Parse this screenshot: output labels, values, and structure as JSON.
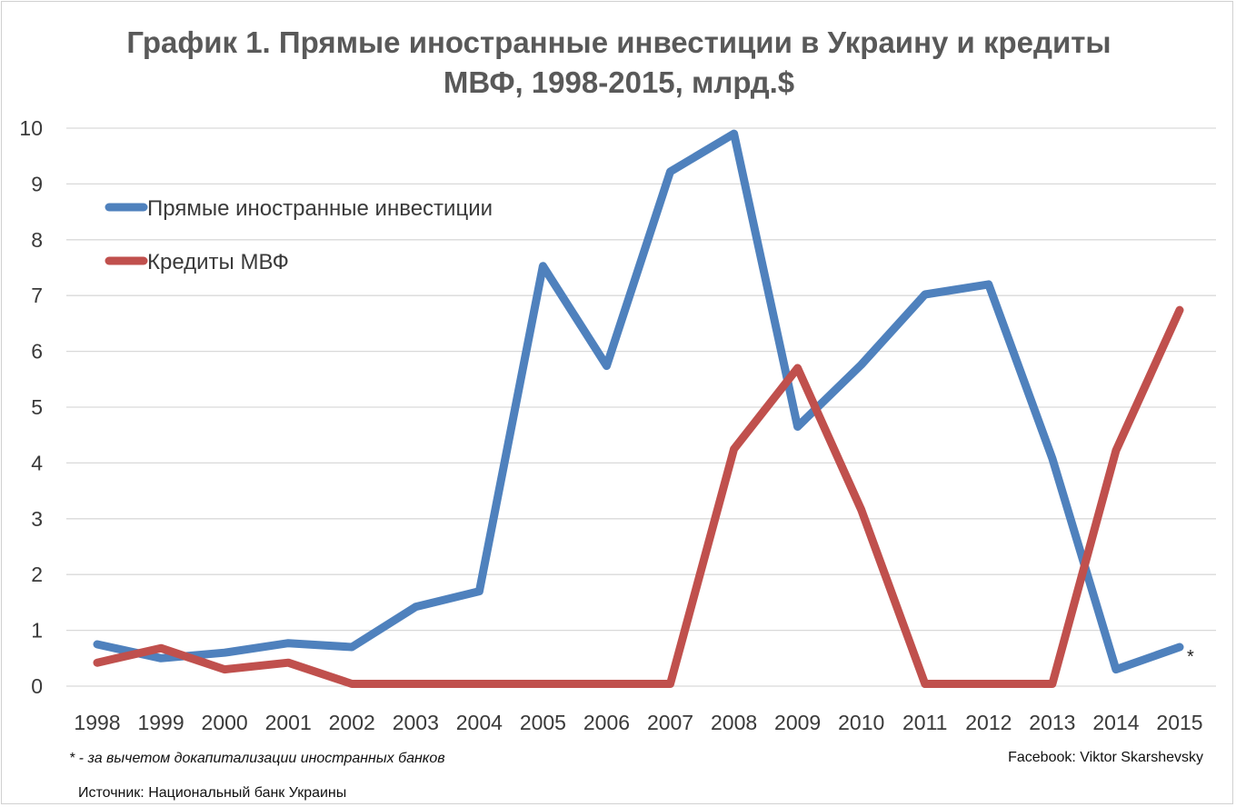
{
  "chart_data": {
    "type": "line",
    "title_lines": [
      "График 1. Прямые иностранные инвестиции в Украину и кредиты",
      "МВФ, 1998-2015, млрд.$"
    ],
    "categories": [
      "1998",
      "1999",
      "2000",
      "2001",
      "2002",
      "2003",
      "2004",
      "2005",
      "2006",
      "2007",
      "2008",
      "2009",
      "2010",
      "2011",
      "2012",
      "2013",
      "2014",
      "2015"
    ],
    "ylim": [
      0,
      10
    ],
    "yticks": [
      "0",
      "1",
      "2",
      "3",
      "4",
      "5",
      "6",
      "7",
      "8",
      "9",
      "10"
    ],
    "grid": true,
    "legend_position": "top-left",
    "series": [
      {
        "name": "Прямые иностранные инвестиции",
        "color": "#4f81bd",
        "values": [
          0.75,
          0.5,
          0.6,
          0.77,
          0.7,
          1.42,
          1.7,
          7.53,
          5.74,
          9.22,
          9.9,
          4.65,
          5.76,
          7.02,
          7.2,
          4.08,
          0.3,
          0.7
        ]
      },
      {
        "name": "Кредиты МВФ",
        "color": "#c0504d",
        "values": [
          0.42,
          0.68,
          0.3,
          0.42,
          0.04,
          0.04,
          0.04,
          0.04,
          0.04,
          0.04,
          4.25,
          5.7,
          3.16,
          0.04,
          0.04,
          0.04,
          4.22,
          6.74
        ]
      }
    ],
    "annotations": {
      "marker": "*",
      "footnote": "* - за вычетом докапитализации иностранных банков",
      "credit": "Facebook: Viktor Skarshevsky",
      "source": "Источник: Национальный банк Украины"
    }
  }
}
